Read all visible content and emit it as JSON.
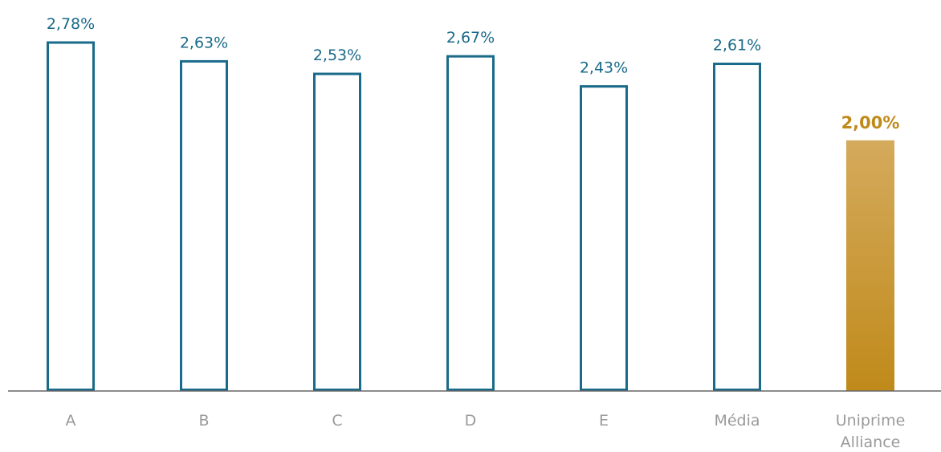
{
  "chart_data": {
    "type": "bar",
    "title": "",
    "xlabel": "",
    "ylabel": "",
    "ylim": [
      0,
      2.9
    ],
    "grid": false,
    "categories": [
      "A",
      "B",
      "C",
      "D",
      "E",
      "Média",
      "Uniprime Alliance"
    ],
    "category_lines": [
      [
        "A"
      ],
      [
        "B"
      ],
      [
        "C"
      ],
      [
        "D"
      ],
      [
        "E"
      ],
      [
        "Média"
      ],
      [
        "Uniprime",
        "Alliance"
      ]
    ],
    "values": [
      2.78,
      2.63,
      2.53,
      2.67,
      2.43,
      2.61,
      2.0
    ],
    "value_labels": [
      "2,78%",
      "2,63%",
      "2,53%",
      "2,67%",
      "2,43%",
      "2,61%",
      "2,00%"
    ],
    "highlight_index": 6,
    "colors": {
      "outline": "#1a6a8a",
      "highlight_top": "#d4aa5c",
      "highlight_bottom": "#c08a1a",
      "highlight_label": "#c08a1a",
      "category_text": "#9a9a9a",
      "axis": "#666666"
    }
  }
}
